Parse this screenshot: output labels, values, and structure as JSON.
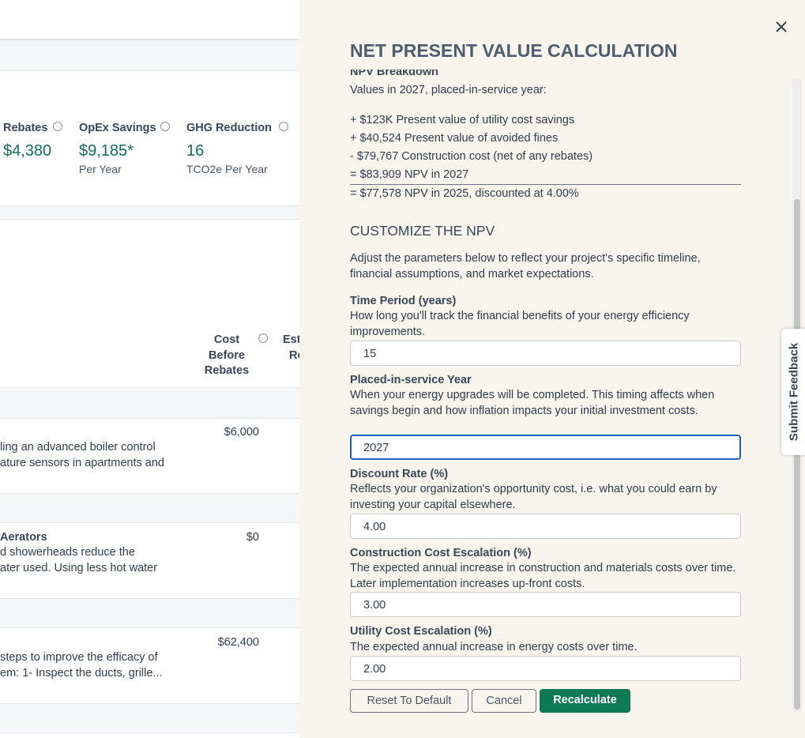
{
  "background": {
    "metrics": [
      {
        "label": "Rebates",
        "value": "$4,380"
      },
      {
        "label": "OpEx Savings",
        "value": "$9,185*",
        "unit": "Per Year"
      },
      {
        "label": "GHG Reduction",
        "value": "16",
        "unit": "TCO2e Per Year"
      }
    ],
    "table": {
      "headers": [
        [
          "Cost",
          "Before",
          "Rebates"
        ],
        [
          "Est",
          "Re"
        ]
      ],
      "rows": [
        {
          "lines": [
            "ling an advanced boiler control",
            "ature sensors in apartments and"
          ],
          "cost": "$6,000"
        },
        {
          "title": "Aerators",
          "lines": [
            "d showerheads reduce the",
            "ater used. Using less hot water"
          ],
          "cost": "$0"
        },
        {
          "lines": [
            "steps to improve the efficacy of",
            "em: 1- Inspect the ducts, grille..."
          ],
          "cost": "$62,400"
        }
      ]
    }
  },
  "panel": {
    "title": "NET PRESENT VALUE CALCULATION",
    "breakdown": {
      "heading": "NPV Breakdown",
      "intro": "Values in 2027, placed-in-service year:",
      "lines": [
        "+ $123K Present value of utility cost savings",
        "+ $40,524 Present value of avoided fines",
        "- $79,767 Construction cost (net of any rebates)",
        "= $83,909 NPV in 2027"
      ],
      "total": "= $77,578 NPV in 2025, discounted at 4.00%"
    },
    "customize": {
      "heading": "CUSTOMIZE THE NPV",
      "description": "Adjust the parameters below to reflect your project's specific timeline, financial assumptions, and market expectations.",
      "fields": [
        {
          "label": "Time Period (years)",
          "help": "How long you'll track the financial benefits of your energy efficiency improvements.",
          "value": "15"
        },
        {
          "label": "Placed-in-service Year",
          "help": "When your energy upgrades will be completed. This timing affects when savings begin and how inflation impacts your initial investment costs.",
          "value": "2027"
        },
        {
          "label": "Discount Rate (%)",
          "help": "Reflects your organization's opportunity cost, i.e. what you could earn by investing your capital elsewhere.",
          "value": "4.00"
        },
        {
          "label": "Construction Cost Escalation (%)",
          "help": "The expected annual increase in construction and materials costs over time. Later implementation increases up-front costs.",
          "value": "3.00"
        },
        {
          "label": "Utility Cost Escalation (%)",
          "help": "The expected annual increase in energy costs over time.",
          "value": "2.00"
        }
      ],
      "buttons": [
        "Reset To Default",
        "Cancel",
        "Recalculate"
      ]
    },
    "feedback": "Submit Feedback"
  }
}
